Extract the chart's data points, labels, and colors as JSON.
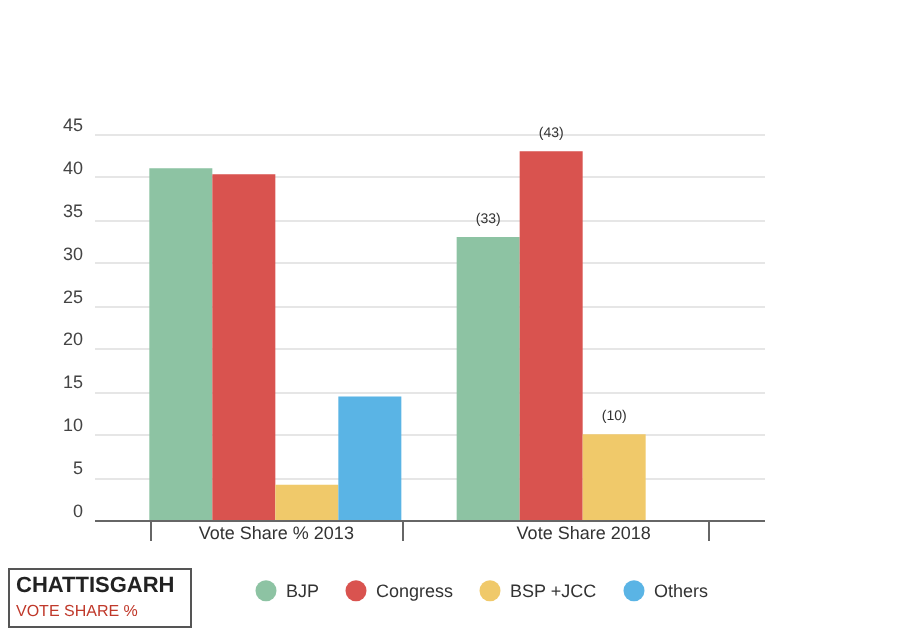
{
  "chart_data": {
    "type": "bar",
    "categories": [
      "Vote Share % 2013",
      "Vote Share 2018"
    ],
    "series": [
      {
        "name": "BJP",
        "color": "#8dc3a3",
        "values": [
          41,
          33
        ],
        "value_labels": [
          null,
          "(33)"
        ]
      },
      {
        "name": "Congress",
        "color": "#d9534f",
        "values": [
          40.3,
          43
        ],
        "value_labels": [
          null,
          "(43)"
        ]
      },
      {
        "name": "BSP +JCC",
        "color": "#f0c96a",
        "values": [
          4.1,
          10
        ],
        "value_labels": [
          null,
          "(10)"
        ]
      },
      {
        "name": "Others",
        "color": "#5ab4e5",
        "values": [
          14.4,
          null
        ],
        "value_labels": [
          null,
          null
        ]
      }
    ],
    "ylim": [
      0,
      45
    ],
    "yticks": [
      0,
      5,
      10,
      15,
      20,
      25,
      30,
      35,
      40,
      45
    ],
    "grid": "y",
    "legend": "bottom",
    "annotations": [
      "CHATTISGARH",
      "VOTE SHARE %"
    ]
  }
}
